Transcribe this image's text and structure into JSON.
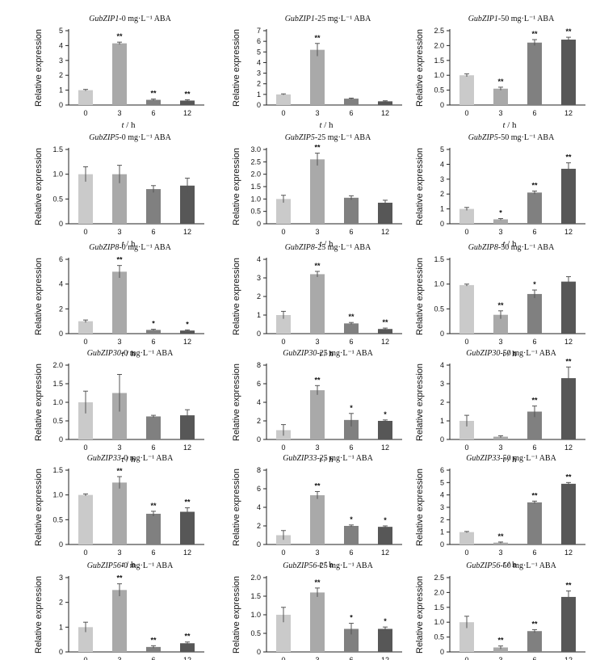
{
  "figure": {
    "xlabel_var": "t",
    "xlabel_unit": " / h",
    "ylabel": "Relative expression",
    "bar_colors": [
      "#cacaca",
      "#a9a9a9",
      "#808080",
      "#575757"
    ]
  },
  "chart_data": [
    {
      "type": "bar",
      "gene": "GubZIP1",
      "title_suffix": "-0 mg·L⁻¹ ABA",
      "categories": [
        "0",
        "3",
        "6",
        "12"
      ],
      "values": [
        1.0,
        4.15,
        0.35,
        0.3
      ],
      "errors": [
        0.05,
        0.08,
        0.05,
        0.05
      ],
      "significance": [
        "",
        "**",
        "**",
        "**"
      ],
      "ylim": [
        0,
        5
      ],
      "yticks": [
        "0",
        "1",
        "2",
        "3",
        "4",
        "5"
      ]
    },
    {
      "type": "bar",
      "gene": "GubZIP1",
      "title_suffix": "-25 mg·L⁻¹ ABA",
      "categories": [
        "0",
        "3",
        "6",
        "12"
      ],
      "values": [
        1.0,
        5.2,
        0.6,
        0.35
      ],
      "errors": [
        0.05,
        0.6,
        0.05,
        0.05
      ],
      "significance": [
        "",
        "**",
        "",
        ""
      ],
      "ylim": [
        0,
        7
      ],
      "yticks": [
        "0",
        "1",
        "2",
        "3",
        "4",
        "5",
        "6",
        "7"
      ]
    },
    {
      "type": "bar",
      "gene": "GubZIP1",
      "title_suffix": "-50 mg·L⁻¹ ABA",
      "categories": [
        "0",
        "3",
        "6",
        "12"
      ],
      "values": [
        1.0,
        0.55,
        2.1,
        2.2
      ],
      "errors": [
        0.05,
        0.05,
        0.1,
        0.08
      ],
      "significance": [
        "",
        "**",
        "**",
        "**"
      ],
      "ylim": [
        0,
        2.5
      ],
      "yticks": [
        "0",
        "0.5",
        "1.0",
        "1.5",
        "2.0",
        "2.5"
      ]
    },
    {
      "type": "bar",
      "gene": "GubZIP5",
      "title_suffix": "-0 mg·L⁻¹ ABA",
      "categories": [
        "0",
        "3",
        "6",
        "12"
      ],
      "values": [
        1.0,
        1.0,
        0.7,
        0.77
      ],
      "errors": [
        0.15,
        0.18,
        0.07,
        0.15
      ],
      "significance": [
        "",
        "",
        "",
        ""
      ],
      "ylim": [
        0,
        1.5
      ],
      "yticks": [
        "0",
        "0.5",
        "1.0",
        "1.5"
      ]
    },
    {
      "type": "bar",
      "gene": "GubZIP5",
      "title_suffix": "-25 mg·L⁻¹ ABA",
      "categories": [
        "0",
        "3",
        "6",
        "12"
      ],
      "values": [
        1.0,
        2.6,
        1.05,
        0.85
      ],
      "errors": [
        0.15,
        0.25,
        0.08,
        0.1
      ],
      "significance": [
        "",
        "**",
        "",
        ""
      ],
      "ylim": [
        0,
        3.0
      ],
      "yticks": [
        "0",
        "0.5",
        "1.0",
        "1.5",
        "2.0",
        "2.5",
        "3.0"
      ]
    },
    {
      "type": "bar",
      "gene": "GubZIP5",
      "title_suffix": "-50 mg·L⁻¹ ABA",
      "categories": [
        "0",
        "3",
        "6",
        "12"
      ],
      "values": [
        1.0,
        0.3,
        2.1,
        3.7
      ],
      "errors": [
        0.1,
        0.05,
        0.1,
        0.4
      ],
      "significance": [
        "",
        "*",
        "**",
        "**"
      ],
      "ylim": [
        0,
        5
      ],
      "yticks": [
        "0",
        "1",
        "2",
        "3",
        "4",
        "5"
      ]
    },
    {
      "type": "bar",
      "gene": "GubZIP8",
      "title_suffix": "-0 mg·L⁻¹ ABA",
      "categories": [
        "0",
        "3",
        "6",
        "12"
      ],
      "values": [
        1.0,
        5.0,
        0.3,
        0.25
      ],
      "errors": [
        0.1,
        0.5,
        0.05,
        0.05
      ],
      "significance": [
        "",
        "**",
        "*",
        "*"
      ],
      "ylim": [
        0,
        6
      ],
      "yticks": [
        "0",
        "2",
        "4",
        "6"
      ]
    },
    {
      "type": "bar",
      "gene": "GubZIP8",
      "title_suffix": "-25 mg·L⁻¹ ABA",
      "categories": [
        "0",
        "3",
        "6",
        "12"
      ],
      "values": [
        1.0,
        3.2,
        0.55,
        0.25
      ],
      "errors": [
        0.2,
        0.15,
        0.05,
        0.05
      ],
      "significance": [
        "",
        "**",
        "**",
        "**"
      ],
      "ylim": [
        0,
        4
      ],
      "yticks": [
        "0",
        "1",
        "2",
        "3",
        "4"
      ]
    },
    {
      "type": "bar",
      "gene": "GubZIP8",
      "title_suffix": "-50 mg·L⁻¹ ABA",
      "categories": [
        "0",
        "3",
        "6",
        "12"
      ],
      "values": [
        0.98,
        0.38,
        0.8,
        1.05
      ],
      "errors": [
        0.02,
        0.08,
        0.08,
        0.1
      ],
      "significance": [
        "",
        "**",
        "*",
        ""
      ],
      "ylim": [
        0,
        1.5
      ],
      "yticks": [
        "0",
        "0.5",
        "1.0",
        "1.5"
      ]
    },
    {
      "type": "bar",
      "gene": "GubZIP30",
      "title_suffix": "-0 mg·L⁻¹ ABA",
      "categories": [
        "0",
        "3",
        "6",
        "12"
      ],
      "values": [
        1.0,
        1.25,
        0.62,
        0.65
      ],
      "errors": [
        0.3,
        0.5,
        0.03,
        0.15
      ],
      "significance": [
        "",
        "",
        "",
        ""
      ],
      "ylim": [
        0,
        2.0
      ],
      "yticks": [
        "0",
        "0.5",
        "1.0",
        "1.5",
        "2.0"
      ]
    },
    {
      "type": "bar",
      "gene": "GubZIP30",
      "title_suffix": "-25 mg·L⁻¹ ABA",
      "categories": [
        "0",
        "3",
        "6",
        "12"
      ],
      "values": [
        1.0,
        5.3,
        2.1,
        2.0
      ],
      "errors": [
        0.6,
        0.5,
        0.7,
        0.1
      ],
      "significance": [
        "",
        "**",
        "*",
        "*"
      ],
      "ylim": [
        0,
        8
      ],
      "yticks": [
        "0",
        "2",
        "4",
        "6",
        "8"
      ]
    },
    {
      "type": "bar",
      "gene": "GubZIP30",
      "title_suffix": "-50 mg·L⁻¹ ABA",
      "categories": [
        "0",
        "3",
        "6",
        "12"
      ],
      "values": [
        1.0,
        0.15,
        1.5,
        3.3
      ],
      "errors": [
        0.3,
        0.05,
        0.3,
        0.6
      ],
      "significance": [
        "",
        "",
        "**",
        "**"
      ],
      "ylim": [
        0,
        4
      ],
      "yticks": [
        "0",
        "1",
        "2",
        "3",
        "4"
      ]
    },
    {
      "type": "bar",
      "gene": "GubZIP33",
      "title_suffix": "-0 mg·L⁻¹ ABA",
      "categories": [
        "0",
        "3",
        "6",
        "12"
      ],
      "values": [
        1.0,
        1.25,
        0.62,
        0.66
      ],
      "errors": [
        0.02,
        0.12,
        0.05,
        0.08
      ],
      "significance": [
        "",
        "**",
        "**",
        "**"
      ],
      "ylim": [
        0,
        1.5
      ],
      "yticks": [
        "0",
        "0.5",
        "1.0",
        "1.5"
      ]
    },
    {
      "type": "bar",
      "gene": "GubZIP33",
      "title_suffix": "-25 mg·L⁻¹ ABA",
      "categories": [
        "0",
        "3",
        "6",
        "12"
      ],
      "values": [
        1.0,
        5.3,
        2.0,
        1.9
      ],
      "errors": [
        0.5,
        0.4,
        0.1,
        0.1
      ],
      "significance": [
        "",
        "**",
        "*",
        "*"
      ],
      "ylim": [
        0,
        8
      ],
      "yticks": [
        "0",
        "2",
        "4",
        "6",
        "8"
      ]
    },
    {
      "type": "bar",
      "gene": "GubZIP33",
      "title_suffix": "-50 mg·L⁻¹ ABA",
      "categories": [
        "0",
        "3",
        "6",
        "12"
      ],
      "values": [
        1.0,
        0.15,
        3.4,
        4.9
      ],
      "errors": [
        0.05,
        0.05,
        0.1,
        0.1
      ],
      "significance": [
        "",
        "**",
        "**",
        "**"
      ],
      "ylim": [
        0,
        6
      ],
      "yticks": [
        "0",
        "1",
        "2",
        "3",
        "4",
        "5",
        "6"
      ]
    },
    {
      "type": "bar",
      "gene": "GubZIP56",
      "title_suffix": "-0 mg·L⁻¹ ABA",
      "categories": [
        "0",
        "3",
        "6",
        "12"
      ],
      "values": [
        1.0,
        2.5,
        0.2,
        0.35
      ],
      "errors": [
        0.2,
        0.25,
        0.05,
        0.05
      ],
      "significance": [
        "",
        "**",
        "**",
        "**"
      ],
      "ylim": [
        0,
        3
      ],
      "yticks": [
        "0",
        "1",
        "2",
        "3"
      ]
    },
    {
      "type": "bar",
      "gene": "GubZIP56",
      "title_suffix": "-25 mg·L⁻¹ ABA",
      "categories": [
        "0",
        "3",
        "6",
        "12"
      ],
      "values": [
        1.0,
        1.6,
        0.62,
        0.62
      ],
      "errors": [
        0.2,
        0.12,
        0.15,
        0.05
      ],
      "significance": [
        "",
        "**",
        "*",
        "*"
      ],
      "ylim": [
        0,
        2.0
      ],
      "yticks": [
        "0",
        "0.5",
        "1.0",
        "1.5",
        "2.0"
      ]
    },
    {
      "type": "bar",
      "gene": "GubZIP56",
      "title_suffix": "-50 mg·L⁻¹ ABA",
      "categories": [
        "0",
        "3",
        "6",
        "12"
      ],
      "values": [
        1.0,
        0.15,
        0.7,
        1.85
      ],
      "errors": [
        0.2,
        0.05,
        0.05,
        0.2
      ],
      "significance": [
        "",
        "**",
        "**",
        "**"
      ],
      "ylim": [
        0,
        2.5
      ],
      "yticks": [
        "0",
        "0.5",
        "1.0",
        "1.5",
        "2.0",
        "2.5"
      ]
    }
  ]
}
